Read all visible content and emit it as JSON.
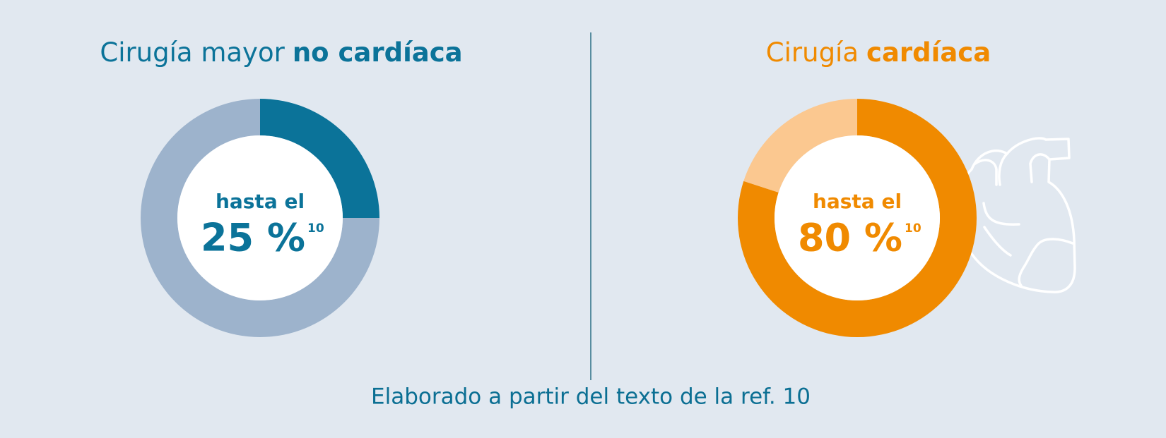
{
  "chart_data": [
    {
      "type": "pie",
      "donut": true,
      "title": "Cirugía mayor",
      "title_bold": "no cardíaca",
      "center_label": "hasta el",
      "ref": "10",
      "values": [
        25,
        75
      ],
      "value_labels": [
        "25 %",
        null
      ],
      "colors": [
        "#0b7399",
        "#9db3cc"
      ]
    },
    {
      "type": "pie",
      "donut": true,
      "title": "Cirugía",
      "title_bold": "cardíaca",
      "center_label": "hasta el",
      "ref": "10",
      "values": [
        80,
        20
      ],
      "value_labels": [
        "80 %",
        null
      ],
      "colors": [
        "#f08a00",
        "#fbc890"
      ]
    }
  ],
  "footnote": "Elaborado a partir del texto de la ref. 10"
}
